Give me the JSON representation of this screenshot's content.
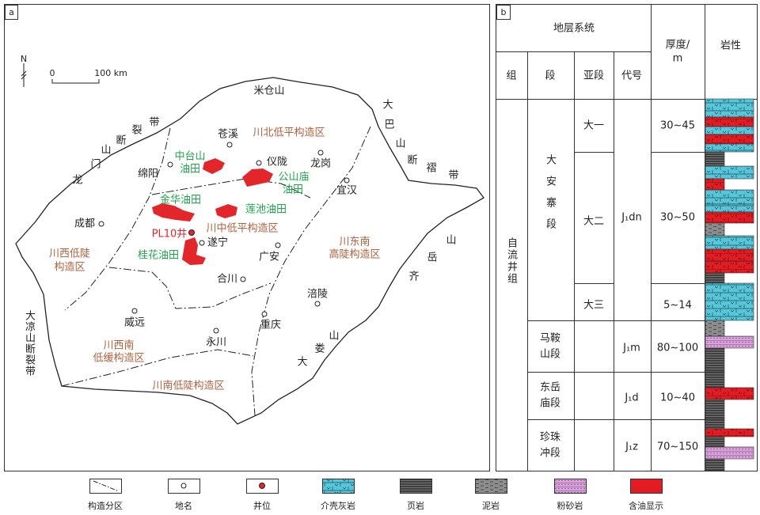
{
  "panel_a": {
    "label": "a",
    "north": "N",
    "scale_start": "0",
    "scale_end": "100 km",
    "mountains": {
      "micang": "米仓山",
      "daba": [
        "大",
        "巴",
        "山",
        "断",
        "褶",
        "带"
      ],
      "longmen": [
        "龙",
        "门",
        "山",
        "断",
        "裂",
        "带"
      ],
      "daliang": "大凉山断裂带",
      "dalou": [
        "大",
        "娄",
        "山"
      ],
      "qiyue": [
        "齐",
        "岳",
        "山"
      ]
    },
    "places": [
      "苍溪",
      "绵阳",
      "仪陇",
      "龙岗",
      "宜汉",
      "成都",
      "遂宁",
      "广安",
      "合川",
      "涪陵",
      "威远",
      "重庆",
      "永川"
    ],
    "regions": [
      [
        "川北低平构造区"
      ],
      [
        "川中低平构造区"
      ],
      [
        "川东南",
        "高陡构造区"
      ],
      [
        "川西低陡",
        "构造区"
      ],
      [
        "川西南",
        "低缓构造区"
      ],
      [
        "川南低陡构造区"
      ]
    ],
    "oilfields": [
      [
        "中台山",
        "油田"
      ],
      [
        "公山庙",
        "油田"
      ],
      [
        "金华油田"
      ],
      [
        "莲池油田"
      ],
      [
        "桂花油田"
      ]
    ],
    "well": "PL10井"
  },
  "panel_b": {
    "label": "b",
    "header": {
      "system": "地层系统",
      "thickness": [
        "厚度/",
        "m"
      ],
      "lithology": "岩性",
      "columns": [
        "组",
        "段",
        "亚段",
        "代号"
      ]
    },
    "formation": "自流井组",
    "members": [
      {
        "name": "大安寨段",
        "code": "J₁dn",
        "submembers": [
          {
            "name": "大一",
            "thickness": "30~45"
          },
          {
            "name": "大二",
            "thickness": "30~50"
          },
          {
            "name": "大三",
            "thickness": "5~14"
          }
        ]
      },
      {
        "name": [
          "马鞍",
          "山段"
        ],
        "code": "J₁m",
        "thickness": "80~100"
      },
      {
        "name": [
          "东岳",
          "庙段"
        ],
        "code": "J₁d",
        "thickness": "10~40"
      },
      {
        "name": [
          "珍珠",
          "冲段"
        ],
        "code": "J₁z",
        "thickness": "70~150"
      }
    ]
  },
  "legend": [
    "构造分区",
    "地名",
    "井位",
    "介壳灰岩",
    "页岩",
    "泥岩",
    "粉砂岩",
    "含油显示"
  ]
}
